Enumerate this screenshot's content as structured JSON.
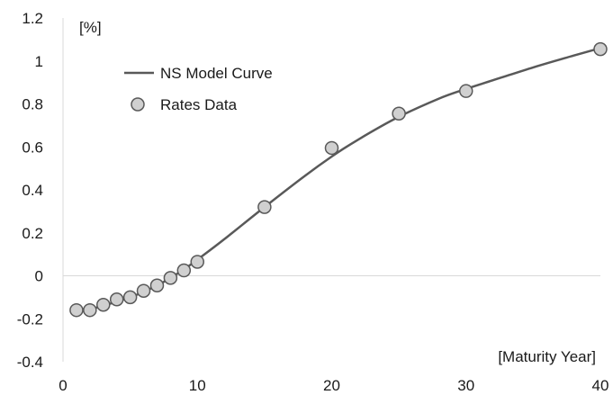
{
  "chart_data": {
    "type": "scatter",
    "title": "",
    "ylabel": "[%]",
    "xlabel": "[Maturity Year]",
    "xlim": [
      0,
      40
    ],
    "ylim": [
      -0.4,
      1.2
    ],
    "xticks": [
      0,
      10,
      20,
      30,
      40
    ],
    "yticks": [
      -0.4,
      -0.2,
      0,
      0.2,
      0.4,
      0.6,
      0.8,
      1,
      1.2
    ],
    "ytick_labels": [
      "-0.4",
      "-0.2",
      "0",
      "0.2",
      "0.4",
      "0.6",
      "0.8",
      "1",
      "1.2"
    ],
    "grid": false,
    "legend_position": "top-left",
    "series": [
      {
        "name": "NS Model Curve",
        "kind": "line",
        "color": "#595959",
        "x": [
          1,
          2,
          3,
          4,
          5,
          6,
          7,
          8,
          9,
          10,
          12,
          15,
          18,
          20,
          22,
          25,
          28,
          30,
          32,
          35,
          38,
          40
        ],
        "y": [
          -0.165,
          -0.155,
          -0.14,
          -0.12,
          -0.1,
          -0.075,
          -0.045,
          -0.01,
          0.03,
          0.075,
          0.17,
          0.32,
          0.465,
          0.555,
          0.635,
          0.74,
          0.825,
          0.87,
          0.91,
          0.97,
          1.025,
          1.06
        ]
      },
      {
        "name": "Rates Data",
        "kind": "scatter",
        "color": "#d0d0d0",
        "edge_color": "#595959",
        "x": [
          1,
          2,
          3,
          4,
          5,
          6,
          7,
          8,
          9,
          10,
          15,
          20,
          25,
          30,
          40
        ],
        "y": [
          -0.16,
          -0.16,
          -0.135,
          -0.11,
          -0.1,
          -0.07,
          -0.045,
          -0.01,
          0.025,
          0.065,
          0.32,
          0.595,
          0.755,
          0.86,
          1.055
        ]
      }
    ]
  }
}
